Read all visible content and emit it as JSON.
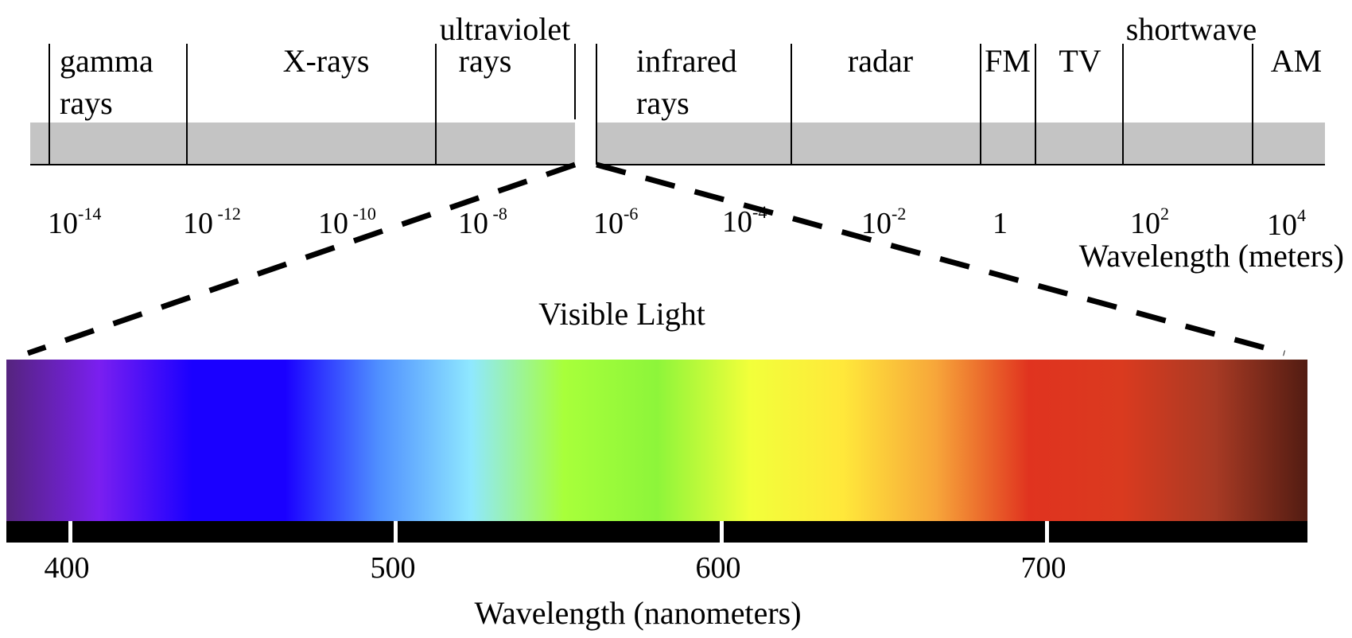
{
  "regions": [
    {
      "line1": "gamma",
      "line2": "rays"
    },
    {
      "line1": "X-rays",
      "line2": ""
    },
    {
      "line1": "ultraviolet",
      "line2": "rays"
    },
    {
      "line1": "infrared",
      "line2": "rays"
    },
    {
      "line1": "radar",
      "line2": ""
    },
    {
      "line1": "FM",
      "line2": ""
    },
    {
      "line1": "TV",
      "line2": ""
    },
    {
      "line1": "shortwave",
      "line2": ""
    },
    {
      "line1": "AM",
      "line2": ""
    }
  ],
  "wavelength_ticks": [
    {
      "base": "10",
      "exp": "-14"
    },
    {
      "base": "10",
      "exp": " -12"
    },
    {
      "base": "10",
      "exp": " -10"
    },
    {
      "base": "10",
      "exp": " -8"
    },
    {
      "base": "10",
      "exp": "-6"
    },
    {
      "base": "10",
      "exp": "-4"
    },
    {
      "base": "10",
      "exp": "-2"
    },
    {
      "base": "1",
      "exp": ""
    },
    {
      "base": "10",
      "exp": "2"
    },
    {
      "base": "10",
      "exp": "4"
    }
  ],
  "top_axis_label": "Wavelength (meters)",
  "visible_title": "Visible Light",
  "nm_ticks": [
    "400",
    "500",
    "600",
    "700"
  ],
  "bottom_axis_label": "Wavelength (nanometers)",
  "colors": {
    "band": "#c4c4c4",
    "spectrum": [
      "#55247e",
      "#7a1ff0",
      "#1a00ff",
      "#1a00ff",
      "#4f8fff",
      "#8fe8ff",
      "#a8ff3a",
      "#8df53a",
      "#f2ff3a",
      "#ffe83a",
      "#f7a63a",
      "#e0331f",
      "#da3a1f",
      "#a83a24",
      "#521c12"
    ]
  }
}
